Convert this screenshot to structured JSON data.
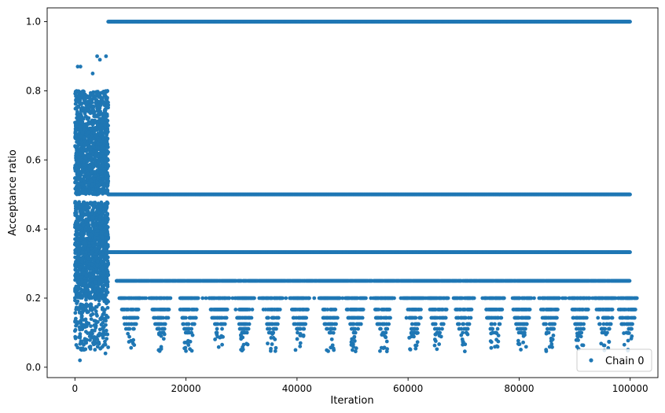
{
  "chart_data": {
    "type": "scatter",
    "title": "",
    "xlabel": "Iteration",
    "ylabel": "Acceptance ratio",
    "xlim": [
      -5000,
      105000
    ],
    "ylim": [
      -0.03,
      1.04
    ],
    "xticks": [
      0,
      20000,
      40000,
      60000,
      80000,
      100000
    ],
    "xtick_labels": [
      "0",
      "20000",
      "40000",
      "60000",
      "80000",
      "100000"
    ],
    "yticks": [
      0.0,
      0.2,
      0.4,
      0.6,
      0.8,
      1.0
    ],
    "ytick_labels": [
      "0.0",
      "0.2",
      "0.4",
      "0.6",
      "0.8",
      "1.0"
    ],
    "grid": false,
    "legend": {
      "position": "lower-right",
      "entries": [
        "Chain 0"
      ]
    },
    "series": [
      {
        "name": "Chain 0",
        "color": "#1f77b4",
        "marker": "circle",
        "burn_in_phase": {
          "x_range": [
            0,
            6000
          ],
          "y_range": [
            0.02,
            0.9
          ],
          "dense_bands": [
            [
              0.2,
              0.48
            ],
            [
              0.5,
              0.7
            ]
          ]
        },
        "sampling_phase": {
          "x_range": [
            6000,
            100000
          ],
          "levels": [
            1.0,
            0.5,
            0.333,
            0.25,
            0.2,
            0.167,
            0.143,
            0.125,
            0.111,
            0.1
          ],
          "tail_min": 0.045,
          "tail_clusters_x": [
            10000,
            15500,
            20500,
            26000,
            30500,
            35500,
            40500,
            46000,
            50500,
            55500,
            61000,
            65500,
            70000,
            75500,
            80500,
            85500,
            91000,
            95500,
            99500
          ]
        },
        "sample_points": [
          {
            "x": 1000,
            "y": 0.87
          },
          {
            "x": 500,
            "y": 0.87
          },
          {
            "x": 4000,
            "y": 0.9
          },
          {
            "x": 4500,
            "y": 0.89
          },
          {
            "x": 3200,
            "y": 0.85
          },
          {
            "x": 900,
            "y": 0.02
          },
          {
            "x": 1200,
            "y": 0.05
          },
          {
            "x": 5500,
            "y": 0.04
          },
          {
            "x": 5600,
            "y": 0.9
          },
          {
            "x": 3500,
            "y": 0.07
          },
          {
            "x": 2800,
            "y": 0.06
          }
        ]
      }
    ]
  }
}
